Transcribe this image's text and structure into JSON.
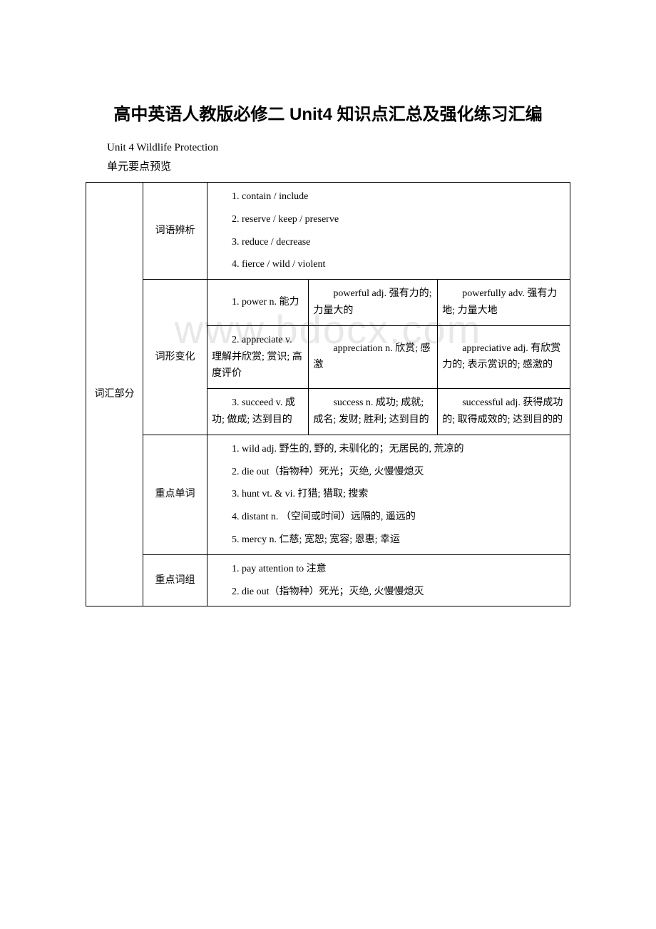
{
  "title": "高中英语人教版必修二 Unit4 知识点汇总及强化练习汇编",
  "subtitle1": "Unit 4 Wildlife Protection",
  "subtitle2": "单元要点预览",
  "watermark": "www.bdocx.com",
  "colMain": "词汇部分",
  "sections": {
    "s1": {
      "label": "词语辨析",
      "items": {
        "i1": "1. contain / include",
        "i2": "2. reserve / keep / preserve",
        "i3": "3. reduce / decrease",
        "i4": "4. fierce / wild / violent"
      }
    },
    "s2": {
      "label": "词形变化",
      "rows": {
        "r1": {
          "c1": "1. power n. 能力",
          "c2": "powerful adj. 强有力的; 力量大的",
          "c3": "powerfully adv. 强有力地; 力量大地"
        },
        "r2": {
          "c1": "2. appreciate v. 理解并欣赏; 赏识; 高度评价",
          "c2": "appreciation n. 欣赏; 感激",
          "c3": "appreciative adj. 有欣赏力的; 表示赏识的; 感激的"
        },
        "r3": {
          "c1": "3. succeed v.  成功; 做成; 达到目的",
          "c2": "success n.  成功; 成就; 成名; 发财; 胜利; 达到目的",
          "c3": "successful adj.  获得成功的; 取得成效的; 达到目的的"
        }
      }
    },
    "s3": {
      "label": "重点单词",
      "items": {
        "i1": "1. wild adj. 野生的, 野的, 未驯化的；无居民的, 荒凉的",
        "i2": "2. die out（指物种）死光；灭绝, 火慢慢熄灭",
        "i3": "3. hunt vt. & vi. 打猎; 猎取; 搜索",
        "i4": "4. distant n. （空间或时间）远隔的, 遥远的",
        "i5": "5. mercy n. 仁慈; 宽恕; 宽容; 恩惠; 幸运"
      }
    },
    "s4": {
      "label": "重点词组",
      "items": {
        "i1": "1. pay attention to 注意",
        "i2": "2. die out（指物种）死光；灭绝, 火慢慢熄灭"
      }
    }
  }
}
